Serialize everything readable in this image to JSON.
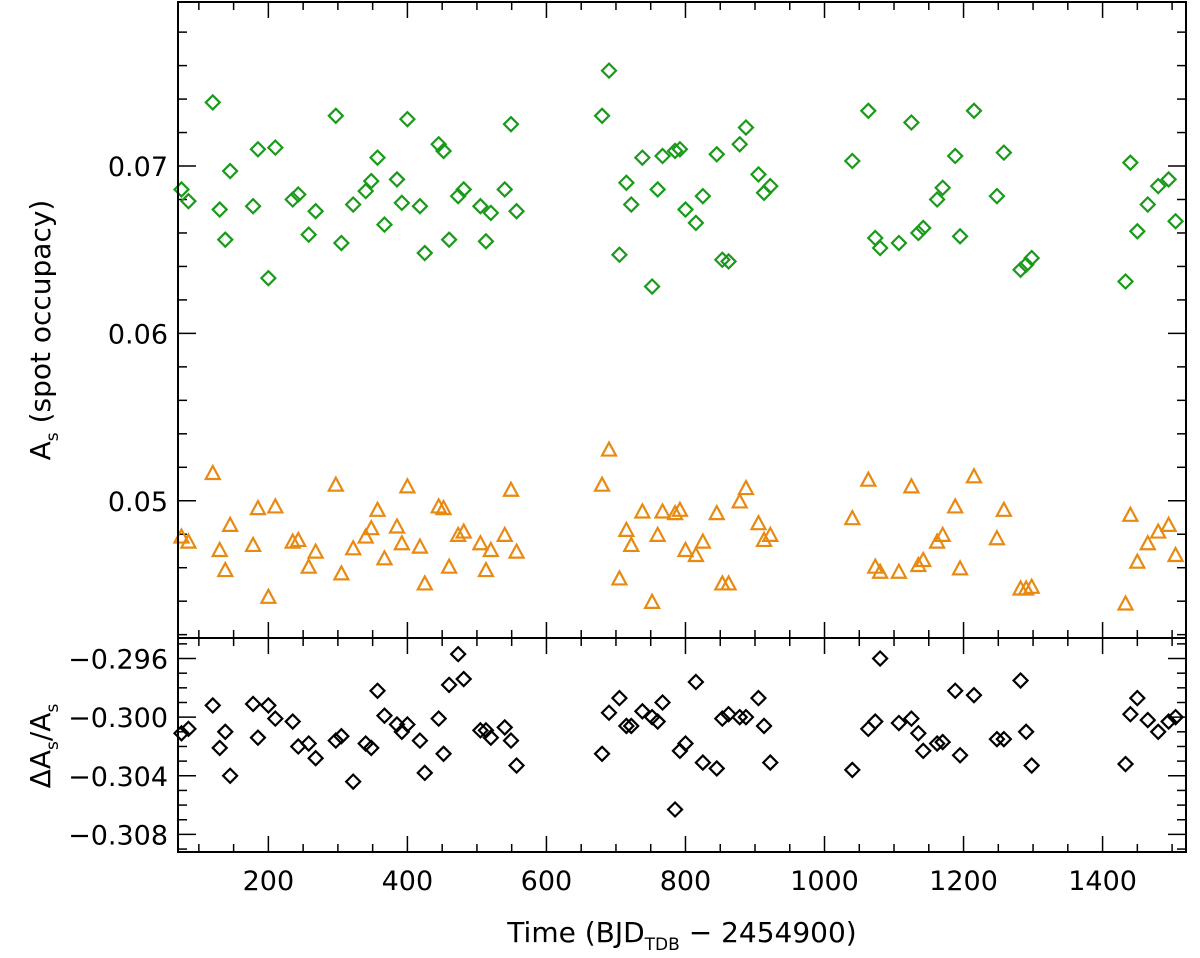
{
  "chart_data": [
    {
      "panel": "top",
      "type": "scatter",
      "ylabel_main": "A",
      "ylabel_sub": "s",
      "ylabel_rest": " (spot occupacy)",
      "xlim": [
        70,
        1520
      ],
      "ylim": [
        0.0418,
        0.0798
      ],
      "yticks": [
        0.05,
        0.06,
        0.07
      ],
      "ytick_labels": [
        "0.05",
        "0.06",
        "0.07"
      ],
      "colors": {
        "series_green": "#1a9a1a",
        "series_orange": "#e88a12"
      },
      "series": [
        {
          "name": "green",
          "marker": "diamond",
          "points": [
            [
              75,
              0.0686
            ],
            [
              85,
              0.0679
            ],
            [
              120,
              0.0738
            ],
            [
              130,
              0.0674
            ],
            [
              138,
              0.0656
            ],
            [
              145,
              0.0697
            ],
            [
              178,
              0.0676
            ],
            [
              185,
              0.071
            ],
            [
              200,
              0.0633
            ],
            [
              210,
              0.0711
            ],
            [
              235,
              0.068
            ],
            [
              243,
              0.0683
            ],
            [
              258,
              0.0659
            ],
            [
              268,
              0.0673
            ],
            [
              297,
              0.073
            ],
            [
              305,
              0.0654
            ],
            [
              322,
              0.0677
            ],
            [
              340,
              0.0685
            ],
            [
              348,
              0.0691
            ],
            [
              357,
              0.0705
            ],
            [
              367,
              0.0665
            ],
            [
              385,
              0.0692
            ],
            [
              392,
              0.0678
            ],
            [
              400,
              0.0728
            ],
            [
              418,
              0.0676
            ],
            [
              425,
              0.0648
            ],
            [
              445,
              0.0713
            ],
            [
              452,
              0.0709
            ],
            [
              460,
              0.0656
            ],
            [
              473,
              0.0682
            ],
            [
              481,
              0.0686
            ],
            [
              505,
              0.0676
            ],
            [
              513,
              0.0655
            ],
            [
              520,
              0.0672
            ],
            [
              540,
              0.0686
            ],
            [
              549,
              0.0725
            ],
            [
              557,
              0.0673
            ],
            [
              680,
              0.073
            ],
            [
              690,
              0.0757
            ],
            [
              705,
              0.0647
            ],
            [
              715,
              0.069
            ],
            [
              722,
              0.0677
            ],
            [
              738,
              0.0705
            ],
            [
              752,
              0.0628
            ],
            [
              760,
              0.0686
            ],
            [
              767,
              0.0706
            ],
            [
              785,
              0.0709
            ],
            [
              792,
              0.071
            ],
            [
              800,
              0.0674
            ],
            [
              815,
              0.0666
            ],
            [
              825,
              0.0682
            ],
            [
              845,
              0.0707
            ],
            [
              853,
              0.0644
            ],
            [
              862,
              0.0643
            ],
            [
              878,
              0.0713
            ],
            [
              887,
              0.0723
            ],
            [
              905,
              0.0695
            ],
            [
              913,
              0.0684
            ],
            [
              922,
              0.0688
            ],
            [
              1040,
              0.0703
            ],
            [
              1063,
              0.0733
            ],
            [
              1073,
              0.0657
            ],
            [
              1080,
              0.0651
            ],
            [
              1107,
              0.0654
            ],
            [
              1125,
              0.0726
            ],
            [
              1135,
              0.066
            ],
            [
              1142,
              0.0663
            ],
            [
              1162,
              0.068
            ],
            [
              1170,
              0.0687
            ],
            [
              1188,
              0.0706
            ],
            [
              1195,
              0.0658
            ],
            [
              1215,
              0.0733
            ],
            [
              1248,
              0.0682
            ],
            [
              1258,
              0.0708
            ],
            [
              1282,
              0.0638
            ],
            [
              1290,
              0.0641
            ],
            [
              1298,
              0.0645
            ],
            [
              1433,
              0.0631
            ],
            [
              1440,
              0.0702
            ],
            [
              1450,
              0.0661
            ],
            [
              1465,
              0.0677
            ],
            [
              1480,
              0.0688
            ],
            [
              1495,
              0.0692
            ],
            [
              1505,
              0.0667
            ]
          ]
        },
        {
          "name": "orange",
          "marker": "triangle",
          "points": [
            [
              75,
              0.0478
            ],
            [
              85,
              0.0475
            ],
            [
              120,
              0.0516
            ],
            [
              130,
              0.047
            ],
            [
              138,
              0.0458
            ],
            [
              145,
              0.0485
            ],
            [
              178,
              0.0473
            ],
            [
              185,
              0.0495
            ],
            [
              200,
              0.0442
            ],
            [
              210,
              0.0496
            ],
            [
              235,
              0.0475
            ],
            [
              243,
              0.0476
            ],
            [
              258,
              0.046
            ],
            [
              268,
              0.0469
            ],
            [
              297,
              0.0509
            ],
            [
              305,
              0.0456
            ],
            [
              322,
              0.0471
            ],
            [
              340,
              0.0478
            ],
            [
              348,
              0.0483
            ],
            [
              357,
              0.0494
            ],
            [
              367,
              0.0465
            ],
            [
              385,
              0.0484
            ],
            [
              392,
              0.0474
            ],
            [
              400,
              0.0508
            ],
            [
              418,
              0.0472
            ],
            [
              425,
              0.045
            ],
            [
              445,
              0.0496
            ],
            [
              452,
              0.0495
            ],
            [
              460,
              0.046
            ],
            [
              473,
              0.0479
            ],
            [
              481,
              0.0481
            ],
            [
              505,
              0.0474
            ],
            [
              513,
              0.0458
            ],
            [
              520,
              0.047
            ],
            [
              540,
              0.0479
            ],
            [
              549,
              0.0506
            ],
            [
              557,
              0.0469
            ],
            [
              680,
              0.0509
            ],
            [
              690,
              0.053
            ],
            [
              705,
              0.0453
            ],
            [
              715,
              0.0482
            ],
            [
              722,
              0.0473
            ],
            [
              738,
              0.0493
            ],
            [
              752,
              0.0439
            ],
            [
              760,
              0.0479
            ],
            [
              767,
              0.0493
            ],
            [
              785,
              0.0492
            ],
            [
              792,
              0.0494
            ],
            [
              800,
              0.047
            ],
            [
              815,
              0.0467
            ],
            [
              825,
              0.0475
            ],
            [
              845,
              0.0492
            ],
            [
              853,
              0.045
            ],
            [
              862,
              0.045
            ],
            [
              878,
              0.0499
            ],
            [
              887,
              0.0507
            ],
            [
              905,
              0.0486
            ],
            [
              913,
              0.0476
            ],
            [
              922,
              0.0479
            ],
            [
              1040,
              0.0489
            ],
            [
              1063,
              0.0512
            ],
            [
              1073,
              0.046
            ],
            [
              1080,
              0.0457
            ],
            [
              1107,
              0.0457
            ],
            [
              1125,
              0.0508
            ],
            [
              1135,
              0.0461
            ],
            [
              1142,
              0.0464
            ],
            [
              1162,
              0.0475
            ],
            [
              1170,
              0.0479
            ],
            [
              1188,
              0.0496
            ],
            [
              1195,
              0.0459
            ],
            [
              1215,
              0.0514
            ],
            [
              1248,
              0.0477
            ],
            [
              1258,
              0.0494
            ],
            [
              1282,
              0.0447
            ],
            [
              1290,
              0.0447
            ],
            [
              1298,
              0.0448
            ],
            [
              1433,
              0.0438
            ],
            [
              1440,
              0.0491
            ],
            [
              1450,
              0.0463
            ],
            [
              1465,
              0.0474
            ],
            [
              1480,
              0.0481
            ],
            [
              1495,
              0.0485
            ],
            [
              1505,
              0.0467
            ]
          ]
        }
      ]
    },
    {
      "panel": "bottom",
      "type": "scatter",
      "ylabel_main": "ΔA",
      "ylabel_sub": "s",
      "ylabel_mid": "/A",
      "ylabel_sub2": "s",
      "xlabel_main": "Time (BJD",
      "xlabel_sub": "TDB",
      "xlabel_rest": " − 2454900)",
      "xlim": [
        70,
        1520
      ],
      "ylim": [
        -0.3092,
        -0.2946
      ],
      "xticks": [
        200,
        400,
        600,
        800,
        1000,
        1200,
        1400
      ],
      "xtick_labels": [
        "200",
        "400",
        "600",
        "800",
        "1000",
        "1200",
        "1400"
      ],
      "yticks": [
        -0.296,
        -0.3,
        -0.304,
        -0.308
      ],
      "ytick_labels": [
        "−0.296",
        "−0.300",
        "−0.304",
        "−0.308"
      ],
      "colors": {
        "series_black": "#000000"
      },
      "series": [
        {
          "name": "black",
          "marker": "diamond",
          "points": [
            [
              75,
              -0.3011
            ],
            [
              85,
              -0.3008
            ],
            [
              120,
              -0.2992
            ],
            [
              130,
              -0.3021
            ],
            [
              138,
              -0.301
            ],
            [
              145,
              -0.304
            ],
            [
              178,
              -0.2991
            ],
            [
              185,
              -0.3014
            ],
            [
              200,
              -0.2992
            ],
            [
              210,
              -0.3001
            ],
            [
              235,
              -0.3003
            ],
            [
              243,
              -0.302
            ],
            [
              258,
              -0.3018
            ],
            [
              268,
              -0.3028
            ],
            [
              297,
              -0.3016
            ],
            [
              305,
              -0.3013
            ],
            [
              322,
              -0.3044
            ],
            [
              340,
              -0.3018
            ],
            [
              348,
              -0.3021
            ],
            [
              357,
              -0.2982
            ],
            [
              367,
              -0.2999
            ],
            [
              385,
              -0.3005
            ],
            [
              392,
              -0.301
            ],
            [
              400,
              -0.3005
            ],
            [
              418,
              -0.3016
            ],
            [
              425,
              -0.3038
            ],
            [
              445,
              -0.3001
            ],
            [
              452,
              -0.3025
            ],
            [
              460,
              -0.2978
            ],
            [
              473,
              -0.2957
            ],
            [
              481,
              -0.2974
            ],
            [
              505,
              -0.3009
            ],
            [
              513,
              -0.3009
            ],
            [
              520,
              -0.3014
            ],
            [
              540,
              -0.3007
            ],
            [
              549,
              -0.3016
            ],
            [
              557,
              -0.3033
            ],
            [
              680,
              -0.3025
            ],
            [
              690,
              -0.2997
            ],
            [
              705,
              -0.2987
            ],
            [
              715,
              -0.3006
            ],
            [
              722,
              -0.3006
            ],
            [
              738,
              -0.2996
            ],
            [
              752,
              -0.3
            ],
            [
              760,
              -0.3003
            ],
            [
              767,
              -0.299
            ],
            [
              785,
              -0.3063
            ],
            [
              792,
              -0.3023
            ],
            [
              800,
              -0.3018
            ],
            [
              815,
              -0.2976
            ],
            [
              825,
              -0.3031
            ],
            [
              845,
              -0.3035
            ],
            [
              853,
              -0.3001
            ],
            [
              862,
              -0.2998
            ],
            [
              878,
              -0.3
            ],
            [
              887,
              -0.3
            ],
            [
              905,
              -0.2987
            ],
            [
              913,
              -0.3006
            ],
            [
              922,
              -0.3031
            ],
            [
              1040,
              -0.3036
            ],
            [
              1063,
              -0.3008
            ],
            [
              1073,
              -0.3003
            ],
            [
              1080,
              -0.296
            ],
            [
              1107,
              -0.3004
            ],
            [
              1125,
              -0.3001
            ],
            [
              1135,
              -0.3011
            ],
            [
              1142,
              -0.3023
            ],
            [
              1162,
              -0.3018
            ],
            [
              1170,
              -0.3017
            ],
            [
              1188,
              -0.2982
            ],
            [
              1195,
              -0.3026
            ],
            [
              1215,
              -0.2985
            ],
            [
              1248,
              -0.3015
            ],
            [
              1258,
              -0.3015
            ],
            [
              1282,
              -0.2975
            ],
            [
              1290,
              -0.301
            ],
            [
              1298,
              -0.3033
            ],
            [
              1433,
              -0.3032
            ],
            [
              1440,
              -0.2998
            ],
            [
              1450,
              -0.2987
            ],
            [
              1465,
              -0.3002
            ],
            [
              1480,
              -0.301
            ],
            [
              1495,
              -0.3003
            ],
            [
              1505,
              -0.3
            ]
          ]
        }
      ]
    }
  ]
}
